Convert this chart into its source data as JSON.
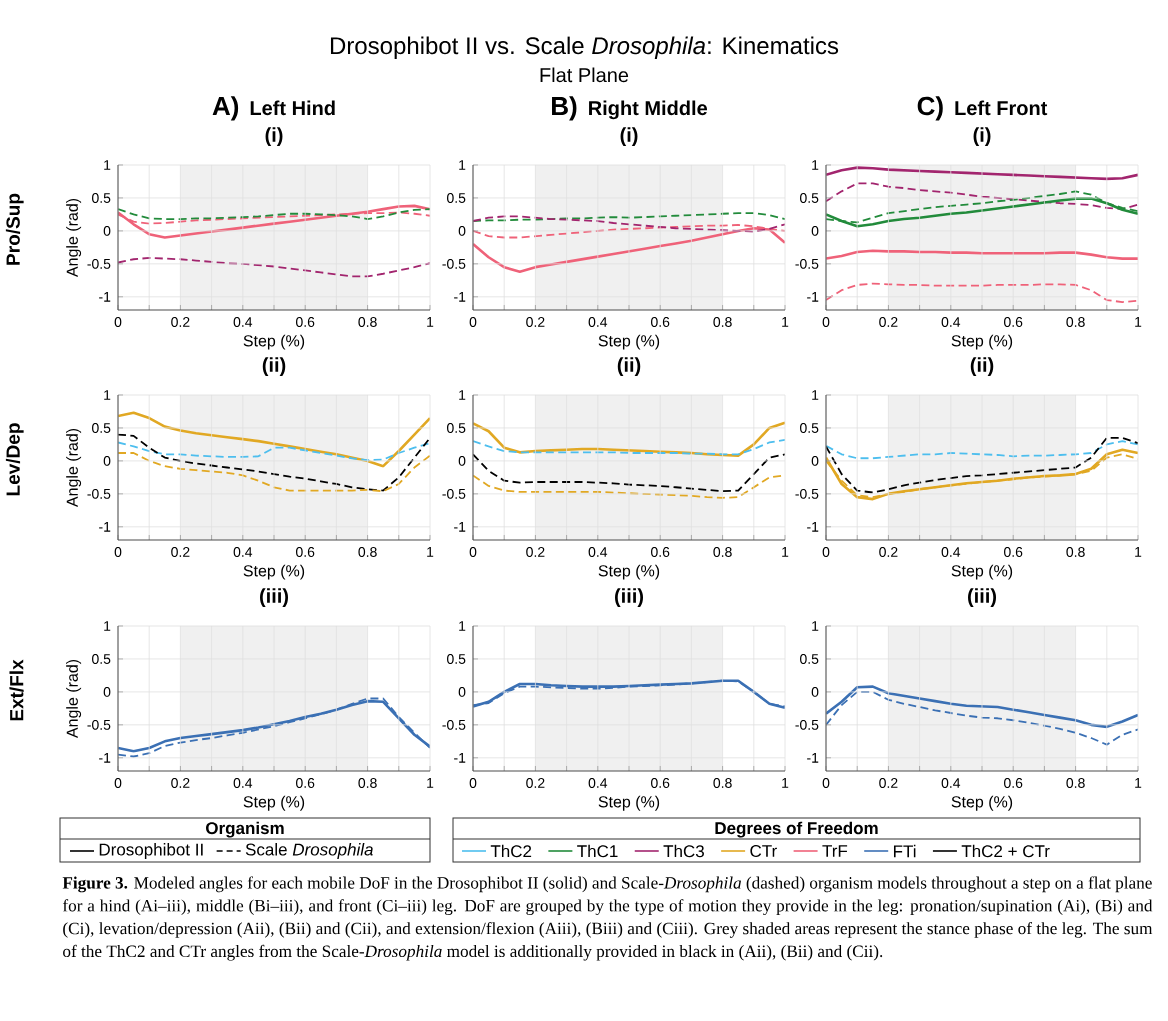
{
  "chart_data": [
    {
      "type": "other",
      "title": "Drosophibot II vs. Scale *Drosophila*: Kinematics",
      "subtitle": "Flat Plane"
    },
    {
      "type": "line",
      "title": "(i)",
      "annotations": [
        "A)",
        "Left Hind",
        "Pro/Sup"
      ],
      "xlabel": "Step (%)",
      "ylabel": "Angle (rad)",
      "x": [
        0,
        0.05,
        0.1,
        0.15,
        0.2,
        0.25,
        0.3,
        0.35,
        0.4,
        0.45,
        0.5,
        0.55,
        0.6,
        0.65,
        0.7,
        0.75,
        0.8,
        0.85,
        0.9,
        0.95,
        1
      ],
      "xlim": [
        0,
        1
      ],
      "xticks": [
        0,
        {
          "value": 0.1,
          "label": null
        },
        0.2,
        {
          "value": 0.3,
          "label": null
        },
        0.4,
        {
          "value": 0.5,
          "label": null
        },
        0.6,
        {
          "value": 0.7,
          "label": null
        },
        0.8,
        {
          "value": 0.9,
          "label": null
        },
        1
      ],
      "ylim": [
        -1.2,
        1
      ],
      "yticks": [
        -1,
        -0.5,
        0,
        0.5,
        1
      ],
      "grid": true,
      "bands": [
        {
          "axis": "x",
          "from": 0.2,
          "to": 0.8,
          "color": "#f0f0f0"
        }
      ],
      "series": [
        {
          "color": "#ef6279",
          "line_style": "solid",
          "values": [
            0.28,
            0.1,
            -0.05,
            -0.1,
            -0.07,
            -0.04,
            -0.01,
            0.02,
            0.05,
            0.08,
            0.11,
            0.14,
            0.17,
            0.2,
            0.23,
            0.26,
            0.29,
            0.33,
            0.37,
            0.38,
            0.33
          ]
        },
        {
          "color": "#ef6279",
          "line_style": "dashed",
          "values": [
            0.25,
            0.14,
            0.11,
            0.12,
            0.14,
            0.16,
            0.17,
            0.18,
            0.19,
            0.2,
            0.21,
            0.22,
            0.23,
            0.24,
            0.25,
            0.26,
            0.27,
            0.27,
            0.28,
            0.26,
            0.23
          ]
        },
        {
          "color": "#228b3b",
          "line_style": "dashed",
          "values": [
            0.33,
            0.25,
            0.19,
            0.18,
            0.18,
            0.19,
            0.19,
            0.2,
            0.21,
            0.22,
            0.24,
            0.26,
            0.26,
            0.25,
            0.24,
            0.22,
            0.18,
            0.22,
            0.28,
            0.32,
            0.33
          ]
        },
        {
          "color": "#a2256e",
          "line_style": "dashed",
          "values": [
            -0.48,
            -0.43,
            -0.41,
            -0.42,
            -0.43,
            -0.45,
            -0.47,
            -0.49,
            -0.5,
            -0.52,
            -0.54,
            -0.57,
            -0.6,
            -0.63,
            -0.66,
            -0.69,
            -0.69,
            -0.65,
            -0.6,
            -0.55,
            -0.49
          ]
        }
      ]
    },
    {
      "type": "line",
      "title": "(i)",
      "annotations": [
        "B)",
        "Right Middle"
      ],
      "xlabel": "Step (%)",
      "x": [
        0,
        0.05,
        0.1,
        0.15,
        0.2,
        0.25,
        0.3,
        0.35,
        0.4,
        0.45,
        0.5,
        0.55,
        0.6,
        0.65,
        0.7,
        0.75,
        0.8,
        0.85,
        0.9,
        0.95,
        1
      ],
      "xlim": [
        0,
        1
      ],
      "xticks": [
        0,
        {
          "value": 0.1,
          "label": null
        },
        0.2,
        {
          "value": 0.3,
          "label": null
        },
        0.4,
        {
          "value": 0.5,
          "label": null
        },
        0.6,
        {
          "value": 0.7,
          "label": null
        },
        0.8,
        {
          "value": 0.9,
          "label": null
        },
        1
      ],
      "ylim": [
        -1.2,
        1
      ],
      "yticks": [
        -1,
        -0.5,
        0,
        0.5,
        1
      ],
      "grid": true,
      "bands": [
        {
          "axis": "x",
          "from": 0.2,
          "to": 0.8,
          "color": "#f0f0f0"
        }
      ],
      "series": [
        {
          "color": "#ef6279",
          "line_style": "solid",
          "values": [
            -0.2,
            -0.4,
            -0.55,
            -0.62,
            -0.55,
            -0.51,
            -0.47,
            -0.43,
            -0.39,
            -0.35,
            -0.31,
            -0.27,
            -0.23,
            -0.19,
            -0.15,
            -0.1,
            -0.05,
            0,
            0.04,
            0.02,
            -0.18
          ]
        },
        {
          "color": "#ef6279",
          "line_style": "dashed",
          "values": [
            0,
            -0.08,
            -0.1,
            -0.1,
            -0.08,
            -0.06,
            -0.04,
            -0.02,
            0,
            0.02,
            0.03,
            0.04,
            0.05,
            0.06,
            0.07,
            0.08,
            0.08,
            0.09,
            0.07,
            0.03,
            0
          ]
        },
        {
          "color": "#228b3b",
          "line_style": "dashed",
          "values": [
            0.15,
            0.16,
            0.16,
            0.17,
            0.17,
            0.18,
            0.19,
            0.19,
            0.2,
            0.21,
            0.2,
            0.21,
            0.22,
            0.23,
            0.24,
            0.25,
            0.26,
            0.27,
            0.27,
            0.24,
            0.18
          ]
        },
        {
          "color": "#a2256e",
          "line_style": "dashed",
          "values": [
            0.15,
            0.2,
            0.22,
            0.22,
            0.2,
            0.18,
            0.17,
            0.16,
            0.15,
            0.12,
            0.1,
            0.08,
            0.06,
            0.04,
            0.03,
            0.02,
            0.01,
            0,
            -0.01,
            0.03,
            0.1
          ]
        }
      ]
    },
    {
      "type": "line",
      "title": "(i)",
      "annotations": [
        "C)",
        "Left Front"
      ],
      "xlabel": "Step (%)",
      "x": [
        0,
        0.05,
        0.1,
        0.15,
        0.2,
        0.25,
        0.3,
        0.35,
        0.4,
        0.45,
        0.5,
        0.55,
        0.6,
        0.65,
        0.7,
        0.75,
        0.8,
        0.85,
        0.9,
        0.95,
        1
      ],
      "xlim": [
        0,
        1
      ],
      "xticks": [
        0,
        {
          "value": 0.1,
          "label": null
        },
        0.2,
        {
          "value": 0.3,
          "label": null
        },
        0.4,
        {
          "value": 0.5,
          "label": null
        },
        0.6,
        {
          "value": 0.7,
          "label": null
        },
        0.8,
        {
          "value": 0.9,
          "label": null
        },
        1
      ],
      "ylim": [
        -1.2,
        1
      ],
      "yticks": [
        -1,
        -0.5,
        0,
        0.5,
        1
      ],
      "grid": true,
      "bands": [
        {
          "axis": "x",
          "from": 0.2,
          "to": 0.8,
          "color": "#f0f0f0"
        }
      ],
      "series": [
        {
          "color": "#a2256e",
          "line_style": "solid",
          "values": [
            0.85,
            0.92,
            0.96,
            0.95,
            0.93,
            0.92,
            0.91,
            0.9,
            0.89,
            0.88,
            0.87,
            0.86,
            0.85,
            0.84,
            0.83,
            0.82,
            0.81,
            0.8,
            0.79,
            0.8,
            0.85
          ]
        },
        {
          "color": "#a2256e",
          "line_style": "dashed",
          "values": [
            0.45,
            0.6,
            0.72,
            0.72,
            0.67,
            0.65,
            0.62,
            0.6,
            0.58,
            0.55,
            0.52,
            0.5,
            0.48,
            0.46,
            0.44,
            0.42,
            0.41,
            0.39,
            0.35,
            0.33,
            0.4
          ]
        },
        {
          "color": "#228b3b",
          "line_style": "solid",
          "values": [
            0.25,
            0.15,
            0.07,
            0.1,
            0.15,
            0.18,
            0.2,
            0.23,
            0.26,
            0.28,
            0.31,
            0.34,
            0.37,
            0.4,
            0.43,
            0.46,
            0.49,
            0.49,
            0.42,
            0.32,
            0.26
          ]
        },
        {
          "color": "#228b3b",
          "line_style": "dashed",
          "values": [
            0.18,
            0.15,
            0.13,
            0.2,
            0.27,
            0.3,
            0.33,
            0.36,
            0.38,
            0.4,
            0.42,
            0.45,
            0.47,
            0.5,
            0.53,
            0.56,
            0.6,
            0.55,
            0.42,
            0.35,
            0.3
          ]
        },
        {
          "color": "#ef6279",
          "line_style": "solid",
          "values": [
            -0.42,
            -0.38,
            -0.32,
            -0.3,
            -0.31,
            -0.31,
            -0.32,
            -0.32,
            -0.33,
            -0.33,
            -0.34,
            -0.34,
            -0.34,
            -0.34,
            -0.34,
            -0.33,
            -0.33,
            -0.36,
            -0.4,
            -0.42,
            -0.42
          ]
        },
        {
          "color": "#ef6279",
          "line_style": "dashed",
          "values": [
            -1.05,
            -0.9,
            -0.82,
            -0.8,
            -0.81,
            -0.82,
            -0.82,
            -0.83,
            -0.83,
            -0.83,
            -0.83,
            -0.82,
            -0.82,
            -0.82,
            -0.81,
            -0.81,
            -0.82,
            -0.9,
            -1.05,
            -1.08,
            -1.06
          ]
        }
      ]
    },
    {
      "type": "line",
      "title": "(ii)",
      "annotations": [
        "Lev/Dep"
      ],
      "xlabel": "Step (%)",
      "ylabel": "Angle (rad)",
      "x": [
        0,
        0.05,
        0.1,
        0.15,
        0.2,
        0.25,
        0.3,
        0.35,
        0.4,
        0.45,
        0.5,
        0.55,
        0.6,
        0.65,
        0.7,
        0.75,
        0.8,
        0.85,
        0.9,
        0.95,
        1
      ],
      "xlim": [
        0,
        1
      ],
      "xticks": [
        0,
        {
          "value": 0.1,
          "label": null
        },
        0.2,
        {
          "value": 0.3,
          "label": null
        },
        0.4,
        {
          "value": 0.5,
          "label": null
        },
        0.6,
        {
          "value": 0.7,
          "label": null
        },
        0.8,
        {
          "value": 0.9,
          "label": null
        },
        1
      ],
      "ylim": [
        -1.2,
        1
      ],
      "yticks": [
        -1,
        -0.5,
        0,
        0.5,
        1
      ],
      "grid": true,
      "bands": [
        {
          "axis": "x",
          "from": 0.2,
          "to": 0.8,
          "color": "#f0f0f0"
        }
      ],
      "series": [
        {
          "color": "#e1a823",
          "line_style": "solid",
          "values": [
            0.68,
            0.73,
            0.65,
            0.52,
            0.46,
            0.42,
            0.39,
            0.36,
            0.33,
            0.3,
            0.26,
            0.22,
            0.18,
            0.14,
            0.1,
            0.05,
            0,
            -0.08,
            0.15,
            0.4,
            0.65
          ]
        },
        {
          "color": "#4dbeee",
          "line_style": "dashed",
          "values": [
            0.28,
            0.22,
            0.15,
            0.1,
            0.1,
            0.08,
            0.07,
            0.06,
            0.06,
            0.07,
            0.2,
            0.2,
            0.16,
            0.12,
            0.08,
            0.04,
            0.01,
            0.02,
            0.12,
            0.2,
            0.27
          ]
        },
        {
          "color": "#000000",
          "line_style": "dashed",
          "values": [
            0.4,
            0.38,
            0.2,
            0.05,
            0,
            -0.04,
            -0.07,
            -0.1,
            -0.13,
            -0.16,
            -0.2,
            -0.24,
            -0.27,
            -0.31,
            -0.35,
            -0.4,
            -0.43,
            -0.45,
            -0.25,
            0.05,
            0.35
          ]
        },
        {
          "color": "#e1a823",
          "line_style": "dashed",
          "values": [
            0.12,
            0.12,
            0,
            -0.08,
            -0.12,
            -0.14,
            -0.16,
            -0.18,
            -0.22,
            -0.3,
            -0.4,
            -0.45,
            -0.45,
            -0.45,
            -0.45,
            -0.45,
            -0.44,
            -0.46,
            -0.35,
            -0.1,
            0.08
          ]
        }
      ]
    },
    {
      "type": "line",
      "title": "(ii)",
      "xlabel": "Step (%)",
      "x": [
        0,
        0.05,
        0.1,
        0.15,
        0.2,
        0.25,
        0.3,
        0.35,
        0.4,
        0.45,
        0.5,
        0.55,
        0.6,
        0.65,
        0.7,
        0.75,
        0.8,
        0.85,
        0.9,
        0.95,
        1
      ],
      "xlim": [
        0,
        1
      ],
      "xticks": [
        0,
        {
          "value": 0.1,
          "label": null
        },
        0.2,
        {
          "value": 0.3,
          "label": null
        },
        0.4,
        {
          "value": 0.5,
          "label": null
        },
        0.6,
        {
          "value": 0.7,
          "label": null
        },
        0.8,
        {
          "value": 0.9,
          "label": null
        },
        1
      ],
      "ylim": [
        -1.2,
        1
      ],
      "yticks": [
        -1,
        -0.5,
        0,
        0.5,
        1
      ],
      "grid": true,
      "bands": [
        {
          "axis": "x",
          "from": 0.2,
          "to": 0.8,
          "color": "#f0f0f0"
        }
      ],
      "series": [
        {
          "color": "#e1a823",
          "line_style": "solid",
          "values": [
            0.57,
            0.45,
            0.2,
            0.13,
            0.15,
            0.16,
            0.17,
            0.18,
            0.18,
            0.17,
            0.16,
            0.15,
            0.14,
            0.13,
            0.12,
            0.1,
            0.09,
            0.08,
            0.25,
            0.5,
            0.58
          ]
        },
        {
          "color": "#4dbeee",
          "line_style": "dashed",
          "values": [
            0.3,
            0.22,
            0.15,
            0.13,
            0.13,
            0.13,
            0.13,
            0.13,
            0.13,
            0.13,
            0.12,
            0.12,
            0.12,
            0.12,
            0.11,
            0.11,
            0.1,
            0.1,
            0.18,
            0.28,
            0.32
          ]
        },
        {
          "color": "#000000",
          "line_style": "dashed",
          "values": [
            0.1,
            -0.15,
            -0.3,
            -0.33,
            -0.32,
            -0.32,
            -0.32,
            -0.32,
            -0.33,
            -0.34,
            -0.36,
            -0.37,
            -0.38,
            -0.4,
            -0.42,
            -0.44,
            -0.46,
            -0.45,
            -0.2,
            0.05,
            0.1
          ]
        },
        {
          "color": "#e1a823",
          "line_style": "dashed",
          "values": [
            -0.22,
            -0.38,
            -0.45,
            -0.47,
            -0.47,
            -0.47,
            -0.47,
            -0.47,
            -0.47,
            -0.48,
            -0.49,
            -0.5,
            -0.51,
            -0.52,
            -0.53,
            -0.55,
            -0.56,
            -0.55,
            -0.4,
            -0.25,
            -0.22
          ]
        }
      ]
    },
    {
      "type": "line",
      "title": "(ii)",
      "xlabel": "Step (%)",
      "x": [
        0,
        0.05,
        0.1,
        0.15,
        0.2,
        0.25,
        0.3,
        0.35,
        0.4,
        0.45,
        0.5,
        0.55,
        0.6,
        0.65,
        0.7,
        0.75,
        0.8,
        0.85,
        0.9,
        0.95,
        1
      ],
      "xlim": [
        0,
        1
      ],
      "xticks": [
        0,
        {
          "value": 0.1,
          "label": null
        },
        0.2,
        {
          "value": 0.3,
          "label": null
        },
        0.4,
        {
          "value": 0.5,
          "label": null
        },
        0.6,
        {
          "value": 0.7,
          "label": null
        },
        0.8,
        {
          "value": 0.9,
          "label": null
        },
        1
      ],
      "ylim": [
        -1.2,
        1
      ],
      "yticks": [
        -1,
        -0.5,
        0,
        0.5,
        1
      ],
      "grid": true,
      "bands": [
        {
          "axis": "x",
          "from": 0.2,
          "to": 0.8,
          "color": "#f0f0f0"
        }
      ],
      "series": [
        {
          "color": "#4dbeee",
          "line_style": "dashed",
          "values": [
            0.23,
            0.1,
            0.04,
            0.04,
            0.06,
            0.08,
            0.1,
            0.1,
            0.12,
            0.11,
            0.1,
            0.09,
            0.07,
            0.08,
            0.08,
            0.09,
            0.1,
            0.12,
            0.25,
            0.3,
            0.25
          ]
        },
        {
          "color": "#000000",
          "line_style": "dashed",
          "values": [
            0.22,
            -0.2,
            -0.45,
            -0.48,
            -0.43,
            -0.37,
            -0.33,
            -0.29,
            -0.26,
            -0.23,
            -0.22,
            -0.2,
            -0.18,
            -0.16,
            -0.14,
            -0.12,
            -0.1,
            0.05,
            0.35,
            0.35,
            0.27
          ]
        },
        {
          "color": "#e1a823",
          "line_style": "solid",
          "values": [
            0.05,
            -0.35,
            -0.55,
            -0.58,
            -0.5,
            -0.46,
            -0.43,
            -0.4,
            -0.37,
            -0.34,
            -0.32,
            -0.3,
            -0.27,
            -0.25,
            -0.23,
            -0.22,
            -0.2,
            -0.12,
            0.1,
            0.17,
            0.12
          ]
        },
        {
          "color": "#e1a823",
          "line_style": "dashed",
          "values": [
            0,
            -0.3,
            -0.52,
            -0.55,
            -0.5,
            -0.47,
            -0.43,
            -0.4,
            -0.37,
            -0.35,
            -0.32,
            -0.3,
            -0.28,
            -0.25,
            -0.24,
            -0.22,
            -0.2,
            -0.15,
            0.05,
            0.1,
            0.03
          ]
        }
      ]
    },
    {
      "type": "line",
      "title": "(iii)",
      "annotations": [
        "Ext/Flx"
      ],
      "xlabel": "Step (%)",
      "ylabel": "Angle (rad)",
      "x": [
        0,
        0.05,
        0.1,
        0.15,
        0.2,
        0.25,
        0.3,
        0.35,
        0.4,
        0.45,
        0.5,
        0.55,
        0.6,
        0.65,
        0.7,
        0.75,
        0.8,
        0.85,
        0.9,
        0.95,
        1
      ],
      "xlim": [
        0,
        1
      ],
      "xticks": [
        0,
        {
          "value": 0.1,
          "label": null
        },
        0.2,
        {
          "value": 0.3,
          "label": null
        },
        0.4,
        {
          "value": 0.5,
          "label": null
        },
        0.6,
        {
          "value": 0.7,
          "label": null
        },
        0.8,
        {
          "value": 0.9,
          "label": null
        },
        1
      ],
      "ylim": [
        -1.2,
        1
      ],
      "yticks": [
        -1,
        -0.5,
        0,
        0.5,
        1
      ],
      "grid": true,
      "bands": [
        {
          "axis": "x",
          "from": 0.2,
          "to": 0.8,
          "color": "#f0f0f0"
        }
      ],
      "series": [
        {
          "color": "#3b70b4",
          "line_style": "solid",
          "values": [
            -0.85,
            -0.9,
            -0.85,
            -0.75,
            -0.7,
            -0.67,
            -0.64,
            -0.61,
            -0.58,
            -0.54,
            -0.49,
            -0.44,
            -0.38,
            -0.33,
            -0.27,
            -0.2,
            -0.14,
            -0.15,
            -0.4,
            -0.65,
            -0.83
          ]
        },
        {
          "color": "#3b70b4",
          "line_style": "dashed",
          "values": [
            -0.95,
            -0.98,
            -0.93,
            -0.82,
            -0.77,
            -0.73,
            -0.7,
            -0.66,
            -0.62,
            -0.57,
            -0.52,
            -0.46,
            -0.4,
            -0.34,
            -0.27,
            -0.18,
            -0.1,
            -0.1,
            -0.38,
            -0.62,
            -0.85
          ]
        }
      ]
    },
    {
      "type": "line",
      "title": "(iii)",
      "xlabel": "Step (%)",
      "x": [
        0,
        0.05,
        0.1,
        0.15,
        0.2,
        0.25,
        0.3,
        0.35,
        0.4,
        0.45,
        0.5,
        0.55,
        0.6,
        0.65,
        0.7,
        0.75,
        0.8,
        0.85,
        0.9,
        0.95,
        1
      ],
      "xlim": [
        0,
        1
      ],
      "xticks": [
        0,
        {
          "value": 0.1,
          "label": null
        },
        0.2,
        {
          "value": 0.3,
          "label": null
        },
        0.4,
        {
          "value": 0.5,
          "label": null
        },
        0.6,
        {
          "value": 0.7,
          "label": null
        },
        0.8,
        {
          "value": 0.9,
          "label": null
        },
        1
      ],
      "ylim": [
        -1.2,
        1
      ],
      "yticks": [
        -1,
        -0.5,
        0,
        0.5,
        1
      ],
      "grid": true,
      "bands": [
        {
          "axis": "x",
          "from": 0.2,
          "to": 0.8,
          "color": "#f0f0f0"
        }
      ],
      "series": [
        {
          "color": "#3b70b4",
          "line_style": "solid",
          "values": [
            -0.22,
            -0.15,
            0,
            0.12,
            0.12,
            0.1,
            0.09,
            0.08,
            0.08,
            0.08,
            0.09,
            0.1,
            0.11,
            0.12,
            0.13,
            0.15,
            0.17,
            0.17,
            0,
            -0.18,
            -0.24
          ]
        },
        {
          "color": "#3b70b4",
          "line_style": "dashed",
          "values": [
            -0.2,
            -0.17,
            -0.02,
            0.08,
            0.08,
            0.07,
            0.06,
            0.05,
            0.05,
            0.06,
            0.08,
            0.09,
            0.1,
            0.11,
            0.13,
            0.15,
            0.17,
            0.16,
            0,
            -0.18,
            -0.22
          ]
        }
      ]
    },
    {
      "type": "line",
      "title": "(iii)",
      "xlabel": "Step (%)",
      "x": [
        0,
        0.05,
        0.1,
        0.15,
        0.2,
        0.25,
        0.3,
        0.35,
        0.4,
        0.45,
        0.5,
        0.55,
        0.6,
        0.65,
        0.7,
        0.75,
        0.8,
        0.85,
        0.9,
        0.95,
        1
      ],
      "xlim": [
        0,
        1
      ],
      "xticks": [
        0,
        {
          "value": 0.1,
          "label": null
        },
        0.2,
        {
          "value": 0.3,
          "label": null
        },
        0.4,
        {
          "value": 0.5,
          "label": null
        },
        0.6,
        {
          "value": 0.7,
          "label": null
        },
        0.8,
        {
          "value": 0.9,
          "label": null
        },
        1
      ],
      "ylim": [
        -1.2,
        1
      ],
      "yticks": [
        -1,
        -0.5,
        0,
        0.5,
        1
      ],
      "grid": true,
      "bands": [
        {
          "axis": "x",
          "from": 0.2,
          "to": 0.8,
          "color": "#f0f0f0"
        }
      ],
      "series": [
        {
          "color": "#3b70b4",
          "line_style": "solid",
          "values": [
            -0.33,
            -0.15,
            0.07,
            0.08,
            -0.02,
            -0.06,
            -0.1,
            -0.14,
            -0.18,
            -0.21,
            -0.22,
            -0.23,
            -0.27,
            -0.31,
            -0.35,
            -0.39,
            -0.43,
            -0.5,
            -0.53,
            -0.45,
            -0.35
          ]
        },
        {
          "color": "#3b70b4",
          "line_style": "dashed",
          "values": [
            -0.5,
            -0.2,
            0,
            0,
            -0.12,
            -0.18,
            -0.23,
            -0.28,
            -0.32,
            -0.36,
            -0.39,
            -0.4,
            -0.43,
            -0.47,
            -0.51,
            -0.56,
            -0.62,
            -0.7,
            -0.8,
            -0.65,
            -0.57
          ]
        }
      ]
    },
    {
      "type": "other",
      "title": "Organism",
      "categories": [
        "Drosophibot II",
        "Scale *Drosophila*"
      ]
    },
    {
      "type": "other",
      "title": "Degrees of Freedom",
      "categories": [
        "ThC2",
        "ThC1",
        "ThC3",
        "CTr",
        "TrF",
        "FTi",
        "ThC2 + CTr"
      ],
      "colors": [
        "#4dbeee",
        "#228b3b",
        "#a2256e",
        "#e1a823",
        "#ef6279",
        "#3b70b4",
        "#000000"
      ]
    },
    {
      "type": "other",
      "annotations": [
        "**Figure 3.** Modeled angles for each mobile DoF in the Drosophibot II (solid) and Scale-*Drosophila* (dashed) organism models throughout a step on a flat plane for a hind (Ai–iii), middle (Bi–iii), and front (Ci–iii) leg. DoF are grouped by the type of motion they provide in the leg: pronation/supination (Ai), (Bi) and (Ci), levation/depression (Aii), (Bii) and (Cii), and extension/flexion (Aiii), (Biii) and (Ciii). Grey shaded areas represent the stance phase of the leg. The sum of the ThC2 and CTr angles from the Scale-*Drosophila* model is additionally provided in black in (Aii), (Bii) and (Cii)."
      ]
    }
  ]
}
